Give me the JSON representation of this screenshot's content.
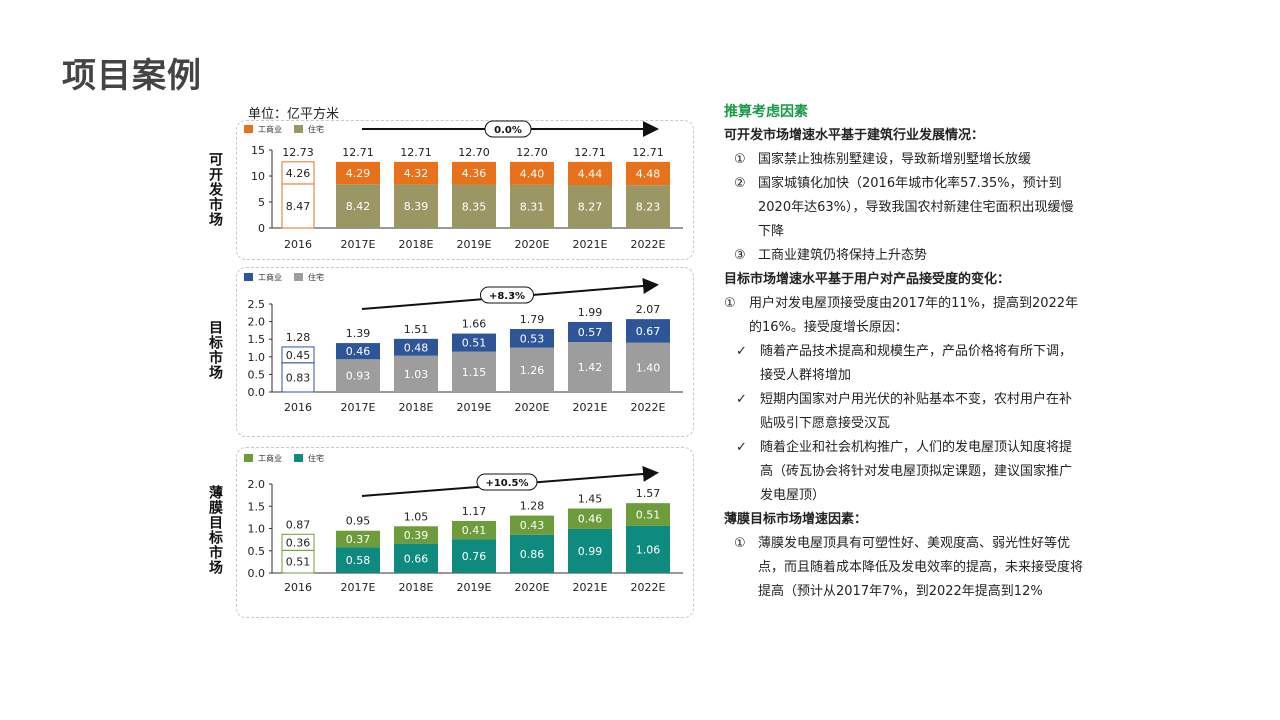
{
  "page": {
    "title": "项目案例"
  },
  "unit_label": "单位：亿平方米",
  "colors": {
    "c1_a": "#e8711c",
    "c1_b": "#9b9765",
    "c2_a": "#2e5597",
    "c2_b": "#9d9d9d",
    "c3_a": "#6f9c3a",
    "c3_b": "#0f8a7f",
    "baseline_border_a": "#2e5597",
    "green_heading": "#1a9a48"
  },
  "chart_data": [
    {
      "type": "bar",
      "stacked": true,
      "side_label": "可开发市场",
      "categories": [
        "2016",
        "2017E",
        "2018E",
        "2019E",
        "2020E",
        "2021E",
        "2022E"
      ],
      "series": [
        {
          "name": "住宅",
          "values": [
            8.47,
            8.42,
            8.39,
            8.35,
            8.31,
            8.27,
            8.23
          ]
        },
        {
          "name": "工商业",
          "values": [
            4.26,
            4.29,
            4.32,
            4.36,
            4.4,
            4.44,
            4.48
          ]
        }
      ],
      "totals": [
        "12.73",
        "12.71",
        "12.71",
        "12.70",
        "12.70",
        "12.71",
        "12.71"
      ],
      "legend_order": [
        "工商业",
        "住宅"
      ],
      "yticks": [
        "15",
        "10",
        "5",
        "0"
      ],
      "ylim": [
        0,
        15
      ],
      "growth_label": "0.0%",
      "trend": "flat"
    },
    {
      "type": "bar",
      "stacked": true,
      "side_label": "目标市场",
      "categories": [
        "2016",
        "2017E",
        "2018E",
        "2019E",
        "2020E",
        "2021E",
        "2022E"
      ],
      "series": [
        {
          "name": "住宅",
          "values": [
            0.83,
            0.93,
            1.03,
            1.15,
            1.26,
            1.42,
            1.4
          ]
        },
        {
          "name": "工商业",
          "values": [
            0.45,
            0.46,
            0.48,
            0.51,
            0.53,
            0.57,
            0.67
          ]
        }
      ],
      "totals": [
        "1.28",
        "1.39",
        "1.51",
        "1.66",
        "1.79",
        "1.99",
        "2.07"
      ],
      "legend_order": [
        "工商业",
        "住宅"
      ],
      "yticks": [
        "2.5",
        "2.0",
        "1.5",
        "1.0",
        "0.5",
        "0.0"
      ],
      "ylim": [
        0,
        2.5
      ],
      "growth_label": "+8.3%",
      "trend": "up"
    },
    {
      "type": "bar",
      "stacked": true,
      "side_label": "薄膜目标市场",
      "categories": [
        "2016",
        "2017E",
        "2018E",
        "2019E",
        "2020E",
        "2021E",
        "2022E"
      ],
      "series": [
        {
          "name": "住宅",
          "values": [
            0.51,
            0.58,
            0.66,
            0.76,
            0.86,
            0.99,
            1.06
          ]
        },
        {
          "name": "工商业",
          "values": [
            0.36,
            0.37,
            0.39,
            0.41,
            0.43,
            0.46,
            0.51
          ]
        }
      ],
      "totals": [
        "0.87",
        "0.95",
        "1.05",
        "1.17",
        "1.28",
        "1.45",
        "1.57"
      ],
      "legend_order": [
        "工商业",
        "住宅"
      ],
      "yticks": [
        "2.0",
        "1.5",
        "1.0",
        "0.5",
        "0.0"
      ],
      "ylim": [
        0,
        2.0
      ],
      "growth_label": "+10.5%",
      "trend": "up"
    }
  ],
  "factors": {
    "title": "推算考虑因素",
    "sec1_title": "可开发市场增速水平基于建筑行业发展情况：",
    "sec1_items": [
      {
        "marker": "①",
        "text": "国家禁止独栋别墅建设，导致新增别墅增长放缓"
      },
      {
        "marker": "②",
        "text": "国家城镇化加快（2016年城市化率57.35%，预计到2020年达63%），导致我国农村新建住宅面积出现缓慢下降"
      },
      {
        "marker": "③",
        "text": "工商业建筑仍将保持上升态势"
      }
    ],
    "sec2_title": "目标市场增速水平基于用户对产品接受度的变化：",
    "sec2_item": {
      "marker": "①",
      "text": "用户对发电屋顶接受度由2017年的11%，提高到2022年的16%。接受度增长原因："
    },
    "sec2_checks": [
      {
        "marker": "✓",
        "text": "随着产品技术提高和规模生产，产品价格将有所下调，接受人群将增加"
      },
      {
        "marker": "✓",
        "text": "短期内国家对户用光伏的补贴基本不变，农村用户在补贴吸引下愿意接受汉瓦"
      },
      {
        "marker": "✓",
        "text": "随着企业和社会机构推广，人们的发电屋顶认知度将提高（砖瓦协会将针对发电屋顶拟定课题，建议国家推广发电屋顶）"
      }
    ],
    "sec3_title": "薄膜目标市场增速因素：",
    "sec3_items": [
      {
        "marker": "①",
        "text": "薄膜发电屋顶具有可塑性好、美观度高、弱光性好等优点，而且随着成本降低及发电效率的提高，未来接受度将提高（预计从2017年7%，到2022年提高到12%"
      }
    ]
  }
}
